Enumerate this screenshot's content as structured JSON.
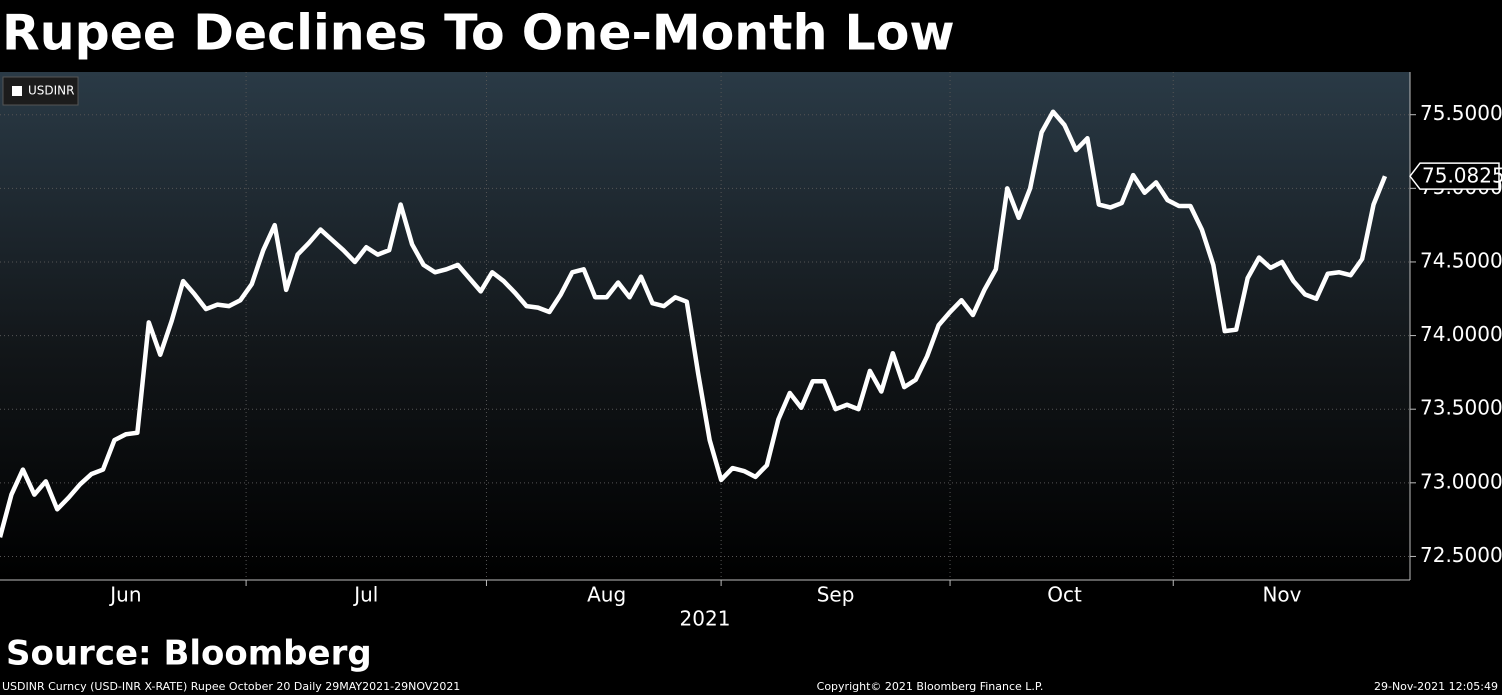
{
  "chart_data": {
    "type": "line",
    "title": "Rupee Declines To One-Month Low",
    "xlabel": "2021",
    "source": "Source: Bloomberg",
    "footer_left": "USDINR Curncy (USD-INR X-RATE) Rupee October 20  Daily 29MAY2021-29NOV2021",
    "footer_center": "Copyright© 2021 Bloomberg Finance L.P.",
    "footer_right": "29-Nov-2021 12:05:49",
    "grid": true,
    "legend": "top-left",
    "categories": [
      null,
      null,
      null,
      null,
      null,
      null,
      null,
      null,
      null,
      null,
      null,
      "Jun",
      null,
      null,
      null,
      null,
      null,
      null,
      null,
      null,
      null,
      null,
      null,
      null,
      null,
      null,
      null,
      null,
      null,
      null,
      null,
      null,
      "Jul",
      null,
      null,
      null,
      null,
      null,
      null,
      null,
      null,
      null,
      null,
      null,
      null,
      null,
      null,
      null,
      null,
      null,
      null,
      null,
      null,
      "Aug",
      null,
      null,
      null,
      null,
      null,
      null,
      null,
      null,
      null,
      null,
      null,
      null,
      null,
      null,
      null,
      null,
      null,
      null,
      null,
      "Sep",
      null,
      null,
      null,
      null,
      null,
      null,
      null,
      null,
      null,
      null,
      null,
      null,
      null,
      null,
      null,
      null,
      null,
      null,
      null,
      "Oct",
      null,
      null,
      null,
      null,
      null,
      null,
      null,
      null,
      null,
      null,
      null,
      null,
      null,
      null,
      null,
      null,
      null,
      null,
      "Nov",
      null,
      null,
      null,
      null,
      null,
      null,
      null,
      null,
      null
    ],
    "series": [
      {
        "name": "USDINR",
        "color": "#ffffff",
        "values": [
          72.63,
          72.92,
          73.09,
          72.92,
          73.01,
          72.82,
          72.9,
          72.99,
          73.06,
          73.09,
          73.29,
          73.33,
          73.34,
          74.09,
          73.87,
          74.1,
          74.37,
          74.28,
          74.18,
          74.21,
          74.2,
          74.24,
          74.35,
          74.58,
          74.75,
          74.31,
          74.55,
          74.63,
          74.72,
          74.65,
          74.58,
          74.5,
          74.6,
          74.55,
          74.58,
          74.89,
          74.62,
          74.48,
          74.43,
          74.45,
          74.48,
          74.39,
          74.3,
          74.43,
          74.37,
          74.29,
          74.2,
          74.19,
          74.16,
          74.28,
          74.43,
          74.45,
          74.26,
          74.26,
          74.36,
          74.26,
          74.4,
          74.22,
          74.2,
          74.26,
          74.23,
          73.74,
          73.29,
          73.02,
          73.1,
          73.08,
          73.04,
          73.12,
          73.43,
          73.61,
          73.51,
          73.69,
          73.69,
          73.5,
          73.53,
          73.5,
          73.76,
          73.62,
          73.88,
          73.65,
          73.7,
          73.86,
          74.07,
          74.16,
          74.24,
          74.14,
          74.31,
          74.45,
          75.0,
          74.8,
          75.0,
          75.38,
          75.52,
          75.43,
          75.26,
          75.34,
          74.89,
          74.87,
          74.9,
          75.09,
          74.97,
          75.04,
          74.92,
          74.88,
          74.88,
          74.72,
          74.48,
          74.03,
          74.04,
          74.39,
          74.53,
          74.46,
          74.5,
          74.37,
          74.28,
          74.25,
          74.42,
          74.43,
          74.41,
          74.52,
          74.89,
          75.0825
        ]
      }
    ],
    "ylim": [
      72.34,
      75.79
    ],
    "yticks": [
      {
        "value": 72.5,
        "label": "72.5000"
      },
      {
        "value": 73,
        "label": "73.0000"
      },
      {
        "value": 73.5,
        "label": "73.5000"
      },
      {
        "value": 74,
        "label": "74.0000"
      },
      {
        "value": 74.5,
        "label": "74.5000"
      },
      {
        "value": 75,
        "label": "75.0000"
      },
      {
        "value": 75.5,
        "label": "75.5000"
      }
    ]
  }
}
